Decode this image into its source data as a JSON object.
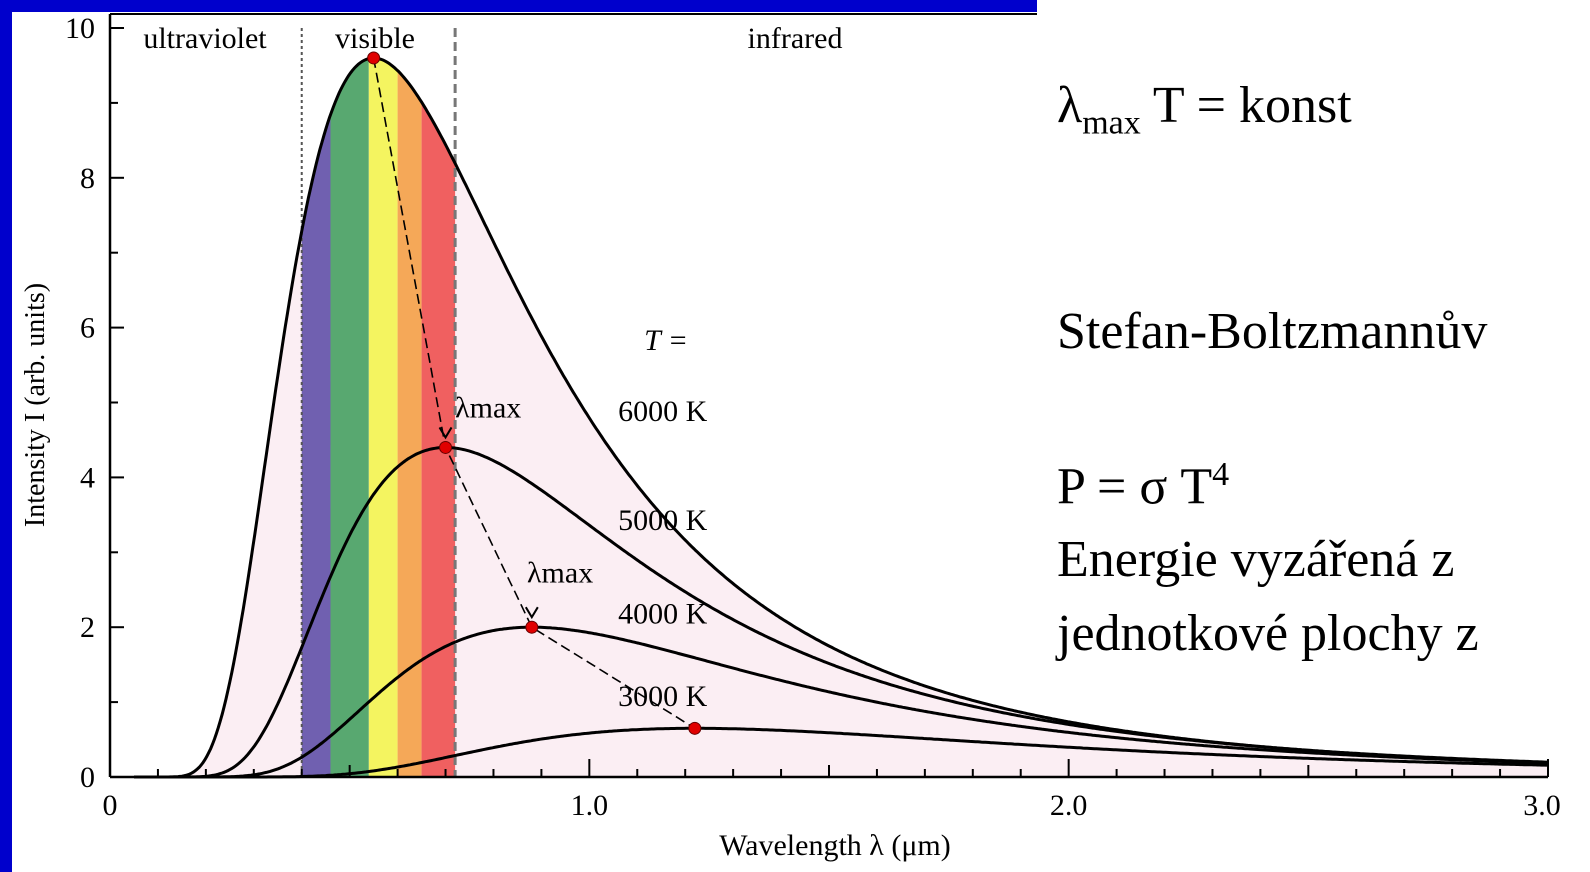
{
  "chart_data": {
    "type": "line",
    "xlabel": "Wavelength  λ  (μm)",
    "ylabel": "Intensity  I  (arb. units)",
    "xlim": [
      0,
      3.0
    ],
    "ylim": [
      0,
      10
    ],
    "x_ticks": [
      {
        "value": 0,
        "label": "0"
      },
      {
        "value": 1.0,
        "label": "1.0"
      },
      {
        "value": 2.0,
        "label": "2.0"
      },
      {
        "value": 3.0,
        "label": "3.0"
      }
    ],
    "y_ticks": [
      {
        "value": 0,
        "label": "0"
      },
      {
        "value": 2,
        "label": "2"
      },
      {
        "value": 4,
        "label": "4"
      },
      {
        "value": 6,
        "label": "6"
      },
      {
        "value": 8,
        "label": "8"
      },
      {
        "value": 10,
        "label": "10"
      }
    ],
    "regions": [
      {
        "label": "ultraviolet",
        "from": 0,
        "to": 0.4
      },
      {
        "label": "visible",
        "from": 0.4,
        "to": 0.72
      },
      {
        "label": "infrared",
        "from": 0.72,
        "to": 3.0
      }
    ],
    "spectrum_bands": [
      {
        "from": 0.4,
        "to": 0.46,
        "color": "#7060b0"
      },
      {
        "from": 0.46,
        "to": 0.54,
        "color": "#58a870"
      },
      {
        "from": 0.54,
        "to": 0.6,
        "color": "#f4f460"
      },
      {
        "from": 0.6,
        "to": 0.65,
        "color": "#f5a858"
      },
      {
        "from": 0.65,
        "to": 0.72,
        "color": "#f06060"
      }
    ],
    "series": [
      {
        "name": "6000 K",
        "label": "6000 K",
        "peak": {
          "x": 0.55,
          "y": 9.6
        },
        "label_at": {
          "x": 1.06,
          "y": 4.75
        }
      },
      {
        "name": "5000 K",
        "label": "5000 K",
        "peak": {
          "x": 0.7,
          "y": 4.4
        },
        "label_at": {
          "x": 1.06,
          "y": 3.3
        }
      },
      {
        "name": "4000 K",
        "label": "4000 K",
        "peak": {
          "x": 0.88,
          "y": 2.0
        },
        "label_at": {
          "x": 1.06,
          "y": 2.05
        }
      },
      {
        "name": "3000 K",
        "label": "3000 K",
        "peak": {
          "x": 1.22,
          "y": 0.65
        },
        "label_at": {
          "x": 1.06,
          "y": 0.95
        }
      }
    ],
    "temperature_header": "T =",
    "peak_labels": [
      {
        "text": "λmax",
        "x": 0.72,
        "y": 4.8
      },
      {
        "text": "λmax",
        "x": 0.87,
        "y": 2.6
      }
    ],
    "colors": {
      "fill": "#fbeef3",
      "curve": "#000000",
      "peak_dot": "#e00000"
    }
  },
  "equations": {
    "wien": {
      "lambda": "λ",
      "sub": "max",
      "rest": " T = konst"
    },
    "stefan": "Stefan-Boltzmannův",
    "power": {
      "base": "P = σ T",
      "sup": "4"
    },
    "energy_line1": "Energie vyzářená z",
    "energy_line2": "jednotkové plochy z"
  },
  "colors": {
    "slide_background": "#0000cc"
  }
}
